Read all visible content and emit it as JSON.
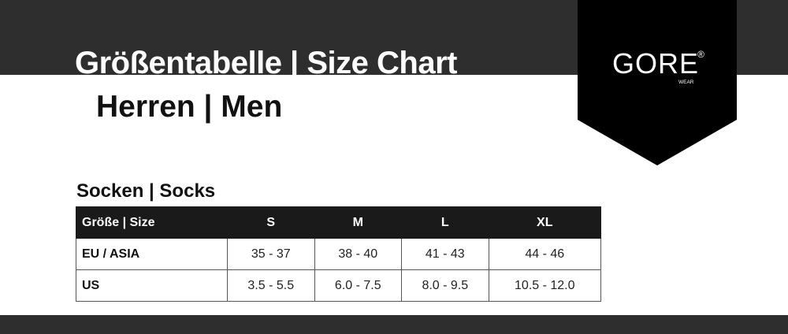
{
  "header": {
    "title": "Größentabelle | Size Chart",
    "subtitle": "Herren | Men"
  },
  "logo": {
    "brand": "GORE",
    "registered": "®",
    "sub": "WEAR"
  },
  "section": "Socken | Socks",
  "table": {
    "headers": [
      "Größe | Size",
      "S",
      "M",
      "L",
      "XL"
    ],
    "rows": [
      {
        "label": "EU / ASIA",
        "values": [
          "35 - 37",
          "38 - 40",
          "41 - 43",
          "44 - 46"
        ]
      },
      {
        "label": "US",
        "values": [
          "3.5 - 5.5",
          "6.0 - 7.5",
          "8.0 - 9.5",
          "10.5 - 12.0"
        ]
      }
    ]
  },
  "colors": {
    "band": "#2e2e2e",
    "logo_bg": "#000000",
    "header_bg": "#1a1a1a"
  }
}
